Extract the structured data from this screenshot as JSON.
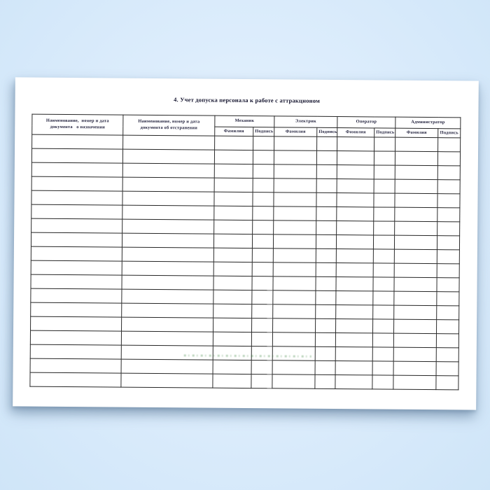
{
  "document": {
    "title": "4. Учет допуска персонала к работе с аттракционом",
    "table": {
      "col_appointment": "Наименование,  номер и дата\nдокумента   о назначении",
      "col_removal": "Наименование, номер и дата\nдокумента об отстранении",
      "groups": [
        {
          "label": "Механик",
          "sub": [
            "Фамилия",
            "Подпись"
          ]
        },
        {
          "label": "Электрик",
          "sub": [
            "Фамилия",
            "Подпись"
          ]
        },
        {
          "label": "Оператор",
          "sub": [
            "Фамилия",
            "Подпись"
          ]
        },
        {
          "label": "Администратор",
          "sub": [
            "Фамилия",
            "Подпись"
          ]
        }
      ],
      "row_count": 18,
      "columns_per_row": 10,
      "cells_empty": true
    },
    "watermark": {
      "color": "#2e7d32",
      "legible": false
    }
  },
  "colors": {
    "background": "#d6e9fb",
    "paper": "#ffffff",
    "grid_line": "#2b2b2b",
    "text": "#1c1c38",
    "title_text": "#14142e"
  }
}
